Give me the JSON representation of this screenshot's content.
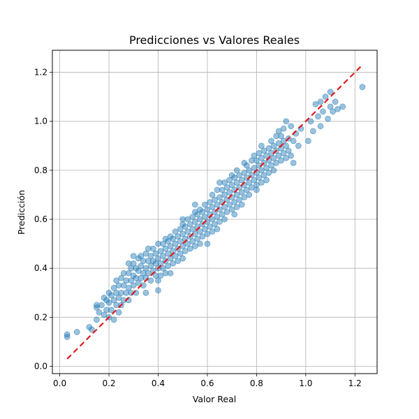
{
  "chart_data": {
    "type": "scatter",
    "title": "Predicciones vs Valores Reales",
    "xlabel": "Valor Real",
    "ylabel": "Predicción",
    "xlim": [
      -0.03,
      1.29
    ],
    "ylim": [
      -0.03,
      1.29
    ],
    "xticks": [
      0.0,
      0.2,
      0.4,
      0.6,
      0.8,
      1.0,
      1.2
    ],
    "yticks": [
      0.0,
      0.2,
      0.4,
      0.6,
      0.8,
      1.0,
      1.2
    ],
    "xtick_labels": [
      "0.0",
      "0.2",
      "0.4",
      "0.6",
      "0.8",
      "1.0",
      "1.2"
    ],
    "ytick_labels": [
      "0.0",
      "0.2",
      "0.4",
      "0.6",
      "0.8",
      "1.0",
      "1.2"
    ],
    "grid": true,
    "reference_line": {
      "x": [
        0.03,
        1.23
      ],
      "y": [
        0.03,
        1.23
      ],
      "style": "dashed",
      "color": "#e31a1c"
    },
    "point_color": "#1f77b4",
    "point_opacity": 0.45,
    "series": [
      {
        "values_xy": [
          [
            0.03,
            0.12
          ],
          [
            0.03,
            0.13
          ],
          [
            0.07,
            0.14
          ],
          [
            0.12,
            0.16
          ],
          [
            0.13,
            0.15
          ],
          [
            0.15,
            0.19
          ],
          [
            0.15,
            0.24
          ],
          [
            0.15,
            0.25
          ],
          [
            0.16,
            0.22
          ],
          [
            0.17,
            0.25
          ],
          [
            0.18,
            0.21
          ],
          [
            0.18,
            0.28
          ],
          [
            0.19,
            0.23
          ],
          [
            0.19,
            0.27
          ],
          [
            0.2,
            0.2
          ],
          [
            0.2,
            0.26
          ],
          [
            0.2,
            0.3
          ],
          [
            0.21,
            0.23
          ],
          [
            0.21,
            0.29
          ],
          [
            0.22,
            0.19
          ],
          [
            0.22,
            0.27
          ],
          [
            0.22,
            0.32
          ],
          [
            0.23,
            0.25
          ],
          [
            0.23,
            0.3
          ],
          [
            0.23,
            0.35
          ],
          [
            0.24,
            0.22
          ],
          [
            0.24,
            0.28
          ],
          [
            0.24,
            0.33
          ],
          [
            0.25,
            0.36
          ],
          [
            0.25,
            0.25
          ],
          [
            0.25,
            0.3
          ],
          [
            0.26,
            0.27
          ],
          [
            0.26,
            0.33
          ],
          [
            0.26,
            0.38
          ],
          [
            0.27,
            0.3
          ],
          [
            0.27,
            0.35
          ],
          [
            0.28,
            0.27
          ],
          [
            0.28,
            0.32
          ],
          [
            0.28,
            0.38
          ],
          [
            0.28,
            0.42
          ],
          [
            0.29,
            0.3
          ],
          [
            0.29,
            0.35
          ],
          [
            0.29,
            0.4
          ],
          [
            0.3,
            0.33
          ],
          [
            0.3,
            0.37
          ],
          [
            0.3,
            0.42
          ],
          [
            0.31,
            0.3
          ],
          [
            0.31,
            0.36
          ],
          [
            0.31,
            0.4
          ],
          [
            0.32,
            0.34
          ],
          [
            0.32,
            0.39
          ],
          [
            0.32,
            0.44
          ],
          [
            0.33,
            0.36
          ],
          [
            0.33,
            0.41
          ],
          [
            0.33,
            0.45
          ],
          [
            0.34,
            0.33
          ],
          [
            0.34,
            0.38
          ],
          [
            0.34,
            0.43
          ],
          [
            0.35,
            0.36
          ],
          [
            0.35,
            0.4
          ],
          [
            0.35,
            0.46
          ],
          [
            0.36,
            0.38
          ],
          [
            0.36,
            0.43
          ],
          [
            0.36,
            0.48
          ],
          [
            0.37,
            0.35
          ],
          [
            0.37,
            0.41
          ],
          [
            0.37,
            0.45
          ],
          [
            0.38,
            0.39
          ],
          [
            0.38,
            0.43
          ],
          [
            0.38,
            0.48
          ],
          [
            0.39,
            0.37
          ],
          [
            0.39,
            0.42
          ],
          [
            0.39,
            0.46
          ],
          [
            0.4,
            0.31
          ],
          [
            0.4,
            0.4
          ],
          [
            0.4,
            0.44
          ],
          [
            0.4,
            0.5
          ],
          [
            0.41,
            0.37
          ],
          [
            0.41,
            0.42
          ],
          [
            0.41,
            0.47
          ],
          [
            0.42,
            0.4
          ],
          [
            0.42,
            0.45
          ],
          [
            0.42,
            0.5
          ],
          [
            0.43,
            0.38
          ],
          [
            0.43,
            0.43
          ],
          [
            0.43,
            0.48
          ],
          [
            0.43,
            0.52
          ],
          [
            0.44,
            0.41
          ],
          [
            0.44,
            0.46
          ],
          [
            0.44,
            0.51
          ],
          [
            0.45,
            0.44
          ],
          [
            0.45,
            0.49
          ],
          [
            0.45,
            0.53
          ],
          [
            0.46,
            0.42
          ],
          [
            0.46,
            0.47
          ],
          [
            0.46,
            0.52
          ],
          [
            0.47,
            0.45
          ],
          [
            0.47,
            0.5
          ],
          [
            0.47,
            0.55
          ],
          [
            0.48,
            0.43
          ],
          [
            0.48,
            0.48
          ],
          [
            0.48,
            0.53
          ],
          [
            0.49,
            0.46
          ],
          [
            0.49,
            0.51
          ],
          [
            0.49,
            0.56
          ],
          [
            0.5,
            0.44
          ],
          [
            0.5,
            0.49
          ],
          [
            0.5,
            0.54
          ],
          [
            0.5,
            0.58
          ],
          [
            0.51,
            0.47
          ],
          [
            0.51,
            0.52
          ],
          [
            0.51,
            0.57
          ],
          [
            0.52,
            0.5
          ],
          [
            0.52,
            0.55
          ],
          [
            0.52,
            0.6
          ],
          [
            0.53,
            0.48
          ],
          [
            0.53,
            0.53
          ],
          [
            0.53,
            0.58
          ],
          [
            0.54,
            0.51
          ],
          [
            0.54,
            0.56
          ],
          [
            0.54,
            0.61
          ],
          [
            0.55,
            0.49
          ],
          [
            0.55,
            0.54
          ],
          [
            0.55,
            0.59
          ],
          [
            0.55,
            0.63
          ],
          [
            0.56,
            0.52
          ],
          [
            0.56,
            0.57
          ],
          [
            0.56,
            0.62
          ],
          [
            0.57,
            0.5
          ],
          [
            0.57,
            0.55
          ],
          [
            0.57,
            0.6
          ],
          [
            0.57,
            0.64
          ],
          [
            0.58,
            0.53
          ],
          [
            0.58,
            0.58
          ],
          [
            0.58,
            0.63
          ],
          [
            0.59,
            0.56
          ],
          [
            0.59,
            0.61
          ],
          [
            0.59,
            0.66
          ],
          [
            0.6,
            0.54
          ],
          [
            0.6,
            0.59
          ],
          [
            0.6,
            0.64
          ],
          [
            0.61,
            0.57
          ],
          [
            0.61,
            0.62
          ],
          [
            0.61,
            0.67
          ],
          [
            0.62,
            0.55
          ],
          [
            0.62,
            0.6
          ],
          [
            0.62,
            0.65
          ],
          [
            0.62,
            0.7
          ],
          [
            0.63,
            0.58
          ],
          [
            0.63,
            0.63
          ],
          [
            0.63,
            0.68
          ],
          [
            0.64,
            0.56
          ],
          [
            0.64,
            0.61
          ],
          [
            0.64,
            0.66
          ],
          [
            0.64,
            0.72
          ],
          [
            0.65,
            0.59
          ],
          [
            0.65,
            0.64
          ],
          [
            0.65,
            0.69
          ],
          [
            0.66,
            0.62
          ],
          [
            0.66,
            0.67
          ],
          [
            0.66,
            0.72
          ],
          [
            0.67,
            0.6
          ],
          [
            0.67,
            0.65
          ],
          [
            0.67,
            0.7
          ],
          [
            0.67,
            0.75
          ],
          [
            0.68,
            0.63
          ],
          [
            0.68,
            0.68
          ],
          [
            0.68,
            0.73
          ],
          [
            0.69,
            0.66
          ],
          [
            0.69,
            0.71
          ],
          [
            0.69,
            0.76
          ],
          [
            0.7,
            0.64
          ],
          [
            0.7,
            0.69
          ],
          [
            0.7,
            0.74
          ],
          [
            0.71,
            0.62
          ],
          [
            0.71,
            0.67
          ],
          [
            0.71,
            0.72
          ],
          [
            0.71,
            0.77
          ],
          [
            0.72,
            0.65
          ],
          [
            0.72,
            0.7
          ],
          [
            0.72,
            0.75
          ],
          [
            0.72,
            0.8
          ],
          [
            0.73,
            0.68
          ],
          [
            0.73,
            0.73
          ],
          [
            0.73,
            0.78
          ],
          [
            0.74,
            0.66
          ],
          [
            0.74,
            0.71
          ],
          [
            0.74,
            0.76
          ],
          [
            0.75,
            0.69
          ],
          [
            0.75,
            0.74
          ],
          [
            0.75,
            0.79
          ],
          [
            0.75,
            0.83
          ],
          [
            0.76,
            0.72
          ],
          [
            0.76,
            0.77
          ],
          [
            0.76,
            0.82
          ],
          [
            0.77,
            0.7
          ],
          [
            0.77,
            0.75
          ],
          [
            0.77,
            0.8
          ],
          [
            0.78,
            0.73
          ],
          [
            0.78,
            0.78
          ],
          [
            0.78,
            0.84
          ],
          [
            0.79,
            0.76
          ],
          [
            0.79,
            0.81
          ],
          [
            0.79,
            0.86
          ],
          [
            0.8,
            0.74
          ],
          [
            0.8,
            0.79
          ],
          [
            0.8,
            0.84
          ],
          [
            0.81,
            0.77
          ],
          [
            0.81,
            0.82
          ],
          [
            0.81,
            0.87
          ],
          [
            0.82,
            0.75
          ],
          [
            0.82,
            0.8
          ],
          [
            0.82,
            0.85
          ],
          [
            0.82,
            0.9
          ],
          [
            0.83,
            0.78
          ],
          [
            0.83,
            0.83
          ],
          [
            0.83,
            0.88
          ],
          [
            0.84,
            0.76
          ],
          [
            0.84,
            0.81
          ],
          [
            0.84,
            0.86
          ],
          [
            0.85,
            0.79
          ],
          [
            0.85,
            0.84
          ],
          [
            0.85,
            0.89
          ],
          [
            0.86,
            0.82
          ],
          [
            0.86,
            0.87
          ],
          [
            0.86,
            0.92
          ],
          [
            0.87,
            0.8
          ],
          [
            0.87,
            0.85
          ],
          [
            0.87,
            0.9
          ],
          [
            0.88,
            0.83
          ],
          [
            0.88,
            0.88
          ],
          [
            0.88,
            0.94
          ],
          [
            0.89,
            0.86
          ],
          [
            0.89,
            0.91
          ],
          [
            0.89,
            0.96
          ],
          [
            0.9,
            0.84
          ],
          [
            0.9,
            0.89
          ],
          [
            0.9,
            0.94
          ],
          [
            0.91,
            0.87
          ],
          [
            0.91,
            0.92
          ],
          [
            0.91,
            0.97
          ],
          [
            0.92,
            0.85
          ],
          [
            0.92,
            0.9
          ],
          [
            0.92,
            1.0
          ],
          [
            0.93,
            0.88
          ],
          [
            0.93,
            0.93
          ],
          [
            0.94,
            0.86
          ],
          [
            0.94,
            0.98
          ],
          [
            0.95,
            0.83
          ],
          [
            0.95,
            0.92
          ],
          [
            0.96,
            0.95
          ],
          [
            0.97,
            0.9
          ],
          [
            0.98,
            0.97
          ],
          [
            1.01,
            0.92
          ],
          [
            1.02,
            1.0
          ],
          [
            1.03,
            0.96
          ],
          [
            1.04,
            1.07
          ],
          [
            1.05,
            1.02
          ],
          [
            1.06,
            1.08
          ],
          [
            1.06,
            0.98
          ],
          [
            1.07,
            1.04
          ],
          [
            1.08,
            1.1
          ],
          [
            1.09,
            1.01
          ],
          [
            1.1,
            1.06
          ],
          [
            1.1,
            1.12
          ],
          [
            1.11,
            1.04
          ],
          [
            1.12,
            1.08
          ],
          [
            1.13,
            1.05
          ],
          [
            1.15,
            1.06
          ],
          [
            1.23,
            1.14
          ],
          [
            0.4,
            0.35
          ],
          [
            0.3,
            0.45
          ],
          [
            0.5,
            0.6
          ],
          [
            0.6,
            0.5
          ],
          [
            0.7,
            0.78
          ],
          [
            0.8,
            0.72
          ],
          [
            0.45,
            0.38
          ],
          [
            0.55,
            0.66
          ],
          [
            0.35,
            0.3
          ],
          [
            0.65,
            0.75
          ]
        ]
      }
    ]
  }
}
